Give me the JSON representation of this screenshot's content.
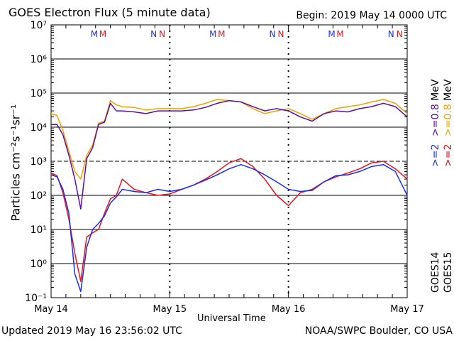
{
  "header": {
    "title": "GOES Electron Flux (5 minute data)",
    "begin": "Begin: 2019 May 14 0000 UTC"
  },
  "footer": {
    "updated": "Updated 2019 May 16 23:56:02 UTC",
    "credit": "NOAA/SWPC Boulder, CO USA"
  },
  "axes": {
    "xlabel": "Universal Time",
    "ylabel": "Particles cm⁻²s⁻¹sr⁻¹",
    "ytick_labels": [
      "10⁻¹",
      "10⁰",
      "10¹",
      "10²",
      "10³",
      "10⁴",
      "10⁵",
      "10⁶",
      "10⁷"
    ],
    "xtick_labels": [
      "May 14",
      "May 15",
      "May 16",
      "May 17"
    ]
  },
  "markers": {
    "m_label": "M",
    "n_label": "N",
    "positions_days": [
      0.4,
      1.4,
      2.4
    ],
    "n_positions_days": [
      0.9,
      1.9,
      2.9
    ]
  },
  "legend": {
    "goes14": "GOES14",
    "goes15": "GOES15",
    "goes14_ge2": ">=2",
    "goes14_ge08": ">=0.8",
    "goes15_ge2": ">=2",
    "goes15_ge08": ">=0.8",
    "unit": "MeV"
  },
  "colors": {
    "goes14_ge08": "#5b0fa0",
    "goes15_ge08": "#f5a000",
    "goes14_ge2": "#1a2ef0",
    "goes15_ge2": "#e8141c",
    "m_marker": "#1a2ef0",
    "n_marker": "#e8141c"
  },
  "chart_data": {
    "type": "line",
    "title": "GOES Electron Flux (5 minute data)",
    "xlabel": "Universal Time",
    "ylabel": "Particles cm-2 s-1 sr-1",
    "xlim": [
      0,
      3
    ],
    "ylim": [
      0.1,
      10000000
    ],
    "yscale": "log",
    "grid": true,
    "x_unit": "days since 2019 May 14 0000 UTC",
    "x": [
      0.0,
      0.05,
      0.1,
      0.15,
      0.2,
      0.25,
      0.3,
      0.35,
      0.4,
      0.45,
      0.5,
      0.55,
      0.6,
      0.7,
      0.8,
      0.9,
      1.0,
      1.1,
      1.2,
      1.3,
      1.4,
      1.5,
      1.6,
      1.7,
      1.8,
      1.9,
      2.0,
      2.1,
      2.2,
      2.3,
      2.4,
      2.5,
      2.6,
      2.7,
      2.8,
      2.9,
      3.0
    ],
    "series": [
      {
        "name": "GOES14 >=0.8 MeV",
        "values": [
          12000,
          12000,
          6000,
          1500,
          300,
          40,
          1200,
          2500,
          12000,
          14000,
          50000,
          30000,
          30000,
          28000,
          25000,
          30000,
          30000,
          30000,
          32000,
          38000,
          50000,
          60000,
          55000,
          40000,
          30000,
          35000,
          30000,
          20000,
          15000,
          25000,
          30000,
          28000,
          35000,
          40000,
          50000,
          40000,
          20000
        ]
      },
      {
        "name": "GOES15 >=0.8 MeV",
        "values": [
          25000,
          22000,
          8000,
          2000,
          500,
          300,
          1500,
          3000,
          13000,
          15000,
          60000,
          45000,
          40000,
          38000,
          32000,
          35000,
          35000,
          35000,
          40000,
          50000,
          65000,
          60000,
          55000,
          35000,
          25000,
          30000,
          35000,
          25000,
          17000,
          25000,
          35000,
          40000,
          45000,
          55000,
          65000,
          50000,
          25000
        ]
      },
      {
        "name": "GOES14 >=2 MeV",
        "values": [
          400,
          350,
          150,
          30,
          0.5,
          0.15,
          3,
          10,
          15,
          25,
          60,
          90,
          150,
          130,
          120,
          150,
          130,
          150,
          200,
          280,
          400,
          600,
          800,
          600,
          400,
          250,
          150,
          130,
          140,
          250,
          380,
          400,
          500,
          700,
          800,
          500,
          100
        ]
      },
      {
        "name": "GOES15 >=2 MeV",
        "values": [
          450,
          380,
          120,
          20,
          2,
          0.3,
          6,
          8,
          10,
          30,
          80,
          100,
          300,
          150,
          120,
          100,
          110,
          150,
          200,
          300,
          500,
          900,
          1200,
          700,
          300,
          100,
          50,
          120,
          150,
          250,
          350,
          450,
          600,
          900,
          1000,
          600,
          300
        ]
      }
    ]
  }
}
